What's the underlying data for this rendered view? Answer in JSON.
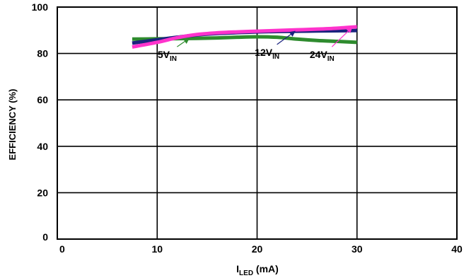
{
  "chart_data": {
    "type": "line",
    "xlabel": {
      "main": "I",
      "sub": "LED",
      "unit": " (mA)"
    },
    "ylabel": "EFFICIENCY (%)",
    "xlim": [
      0,
      40
    ],
    "ylim": [
      0,
      100
    ],
    "xticks": [
      "0",
      "10",
      "20",
      "30",
      "40"
    ],
    "yticks": [
      "0",
      "20",
      "40",
      "60",
      "80",
      "100"
    ],
    "grid": true,
    "series": [
      {
        "name": "5V",
        "name_sub": "IN",
        "color": "#2e8b2e",
        "x": [
          7.5,
          10,
          12,
          14,
          16,
          18,
          20,
          22,
          24,
          26,
          28,
          30
        ],
        "y": [
          86.2,
          86.3,
          86.4,
          86.5,
          86.7,
          87.0,
          87.2,
          87.0,
          86.2,
          85.6,
          85.2,
          84.8
        ]
      },
      {
        "name": "12V",
        "name_sub": "IN",
        "color": "#1a237e",
        "x": [
          7.5,
          10,
          12,
          14,
          16,
          18,
          20,
          22,
          24,
          26,
          28,
          30
        ],
        "y": [
          84.5,
          85.9,
          87.0,
          88.0,
          88.6,
          89.0,
          89.3,
          89.5,
          89.6,
          89.7,
          89.8,
          89.9
        ]
      },
      {
        "name": "24V",
        "name_sub": "IN",
        "color": "#ff33cc",
        "x": [
          7.5,
          10,
          12,
          14,
          16,
          18,
          20,
          22,
          24,
          26,
          28,
          30
        ],
        "y": [
          82.8,
          84.8,
          86.8,
          88.2,
          88.9,
          89.3,
          89.6,
          89.9,
          90.2,
          90.5,
          90.9,
          91.5
        ]
      }
    ],
    "annotations": [
      {
        "series": 0,
        "label_x": 11,
        "label_y": 78,
        "arrow_to_x": 13.2,
        "arrow_to_y": 86.5
      },
      {
        "series": 1,
        "label_x": 21,
        "label_y": 79,
        "arrow_to_x": 23.8,
        "arrow_to_y": 89.6
      },
      {
        "series": 2,
        "label_x": 26.5,
        "label_y": 78,
        "arrow_to_x": 29.5,
        "arrow_to_y": 91.2
      }
    ]
  }
}
